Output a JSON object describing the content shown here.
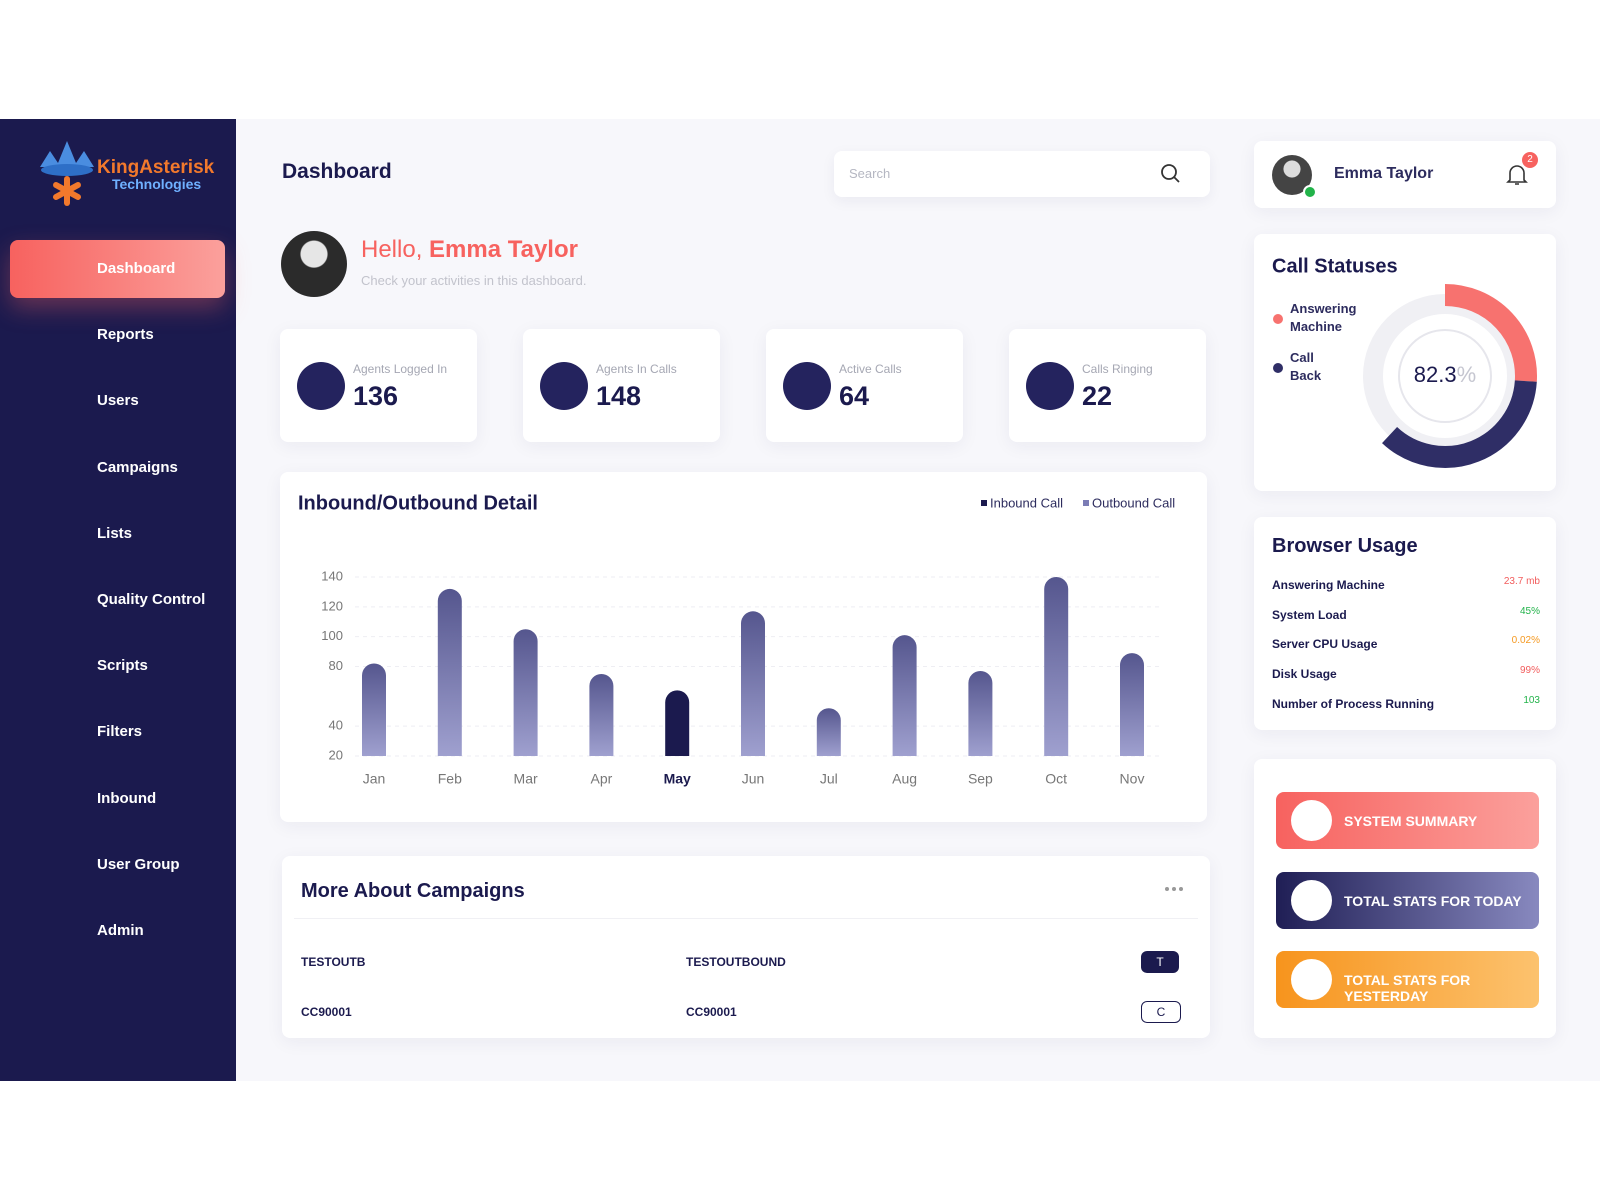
{
  "sidebar": {
    "brand": "KingAsterisk",
    "brand_sub": "Technologies",
    "active": 0,
    "menu": [
      "Dashboard",
      "Reports",
      "Users",
      "Campaigns",
      "Lists",
      "Quality Control",
      "Scripts",
      "Filters",
      "Inbound",
      "User Group",
      "Admin"
    ]
  },
  "header": {
    "title": "Dashboard",
    "search_placeholder": "Search"
  },
  "user": {
    "name": "Emma Taylor",
    "notifications": 2
  },
  "greeting": {
    "hello": "Hello,",
    "subtitle": "Check your activities in this dashboard."
  },
  "stats": [
    {
      "label": "Agents Logged In",
      "value": 136
    },
    {
      "label": "Agents In Calls",
      "value": 148
    },
    {
      "label": "Active Calls",
      "value": 64
    },
    {
      "label": "Calls Ringing",
      "value": 22
    }
  ],
  "chart_data": [
    {
      "type": "bar",
      "title": "Inbound/Outbound Detail",
      "legend": [
        "Inbound Call",
        "Outbound Call"
      ],
      "categories": [
        "Jan",
        "Feb",
        "Mar",
        "Apr",
        "May",
        "Jun",
        "Jul",
        "Aug",
        "Sep",
        "Oct",
        "Nov"
      ],
      "values": [
        82,
        132,
        105,
        75,
        64,
        117,
        52,
        101,
        77,
        140,
        89
      ],
      "highlight": 4,
      "ylim": [
        20,
        140
      ],
      "yticks": [
        20,
        40,
        80,
        100,
        120,
        140
      ],
      "grid": true
    },
    {
      "type": "donut",
      "title": "Call Statuses",
      "value": 82.3,
      "unit": "%",
      "series": [
        {
          "name": "Answering Machine",
          "color": "#f7726f",
          "value": 26
        },
        {
          "name": "Call Back",
          "color": "#2f2e66",
          "value": 36
        }
      ]
    }
  ],
  "browser_usage": {
    "title": "Browser Usage",
    "rows": [
      {
        "label": "Answering Machine",
        "value": "23.7 mb",
        "color": "#f25c5c"
      },
      {
        "label": "System Load",
        "value": "45%",
        "color": "#22b34a"
      },
      {
        "label": "Server CPU Usage",
        "value": "0.02%",
        "color": "#f59a23"
      },
      {
        "label": "Disk Usage",
        "value": "99%",
        "color": "#f25c5c"
      },
      {
        "label": "Number of Process Running",
        "value": "103",
        "color": "#22b34a"
      }
    ]
  },
  "actions": [
    "SYSTEM SUMMARY",
    "TOTAL STATS FOR TODAY",
    "TOTAL STATS FOR YESTERDAY"
  ],
  "campaigns": {
    "title": "More About Campaigns",
    "rows": [
      [
        "TESTOUTB",
        "TESTOUTBOUND",
        "T"
      ],
      [
        "CC90001",
        "CC90001",
        "C"
      ]
    ]
  }
}
